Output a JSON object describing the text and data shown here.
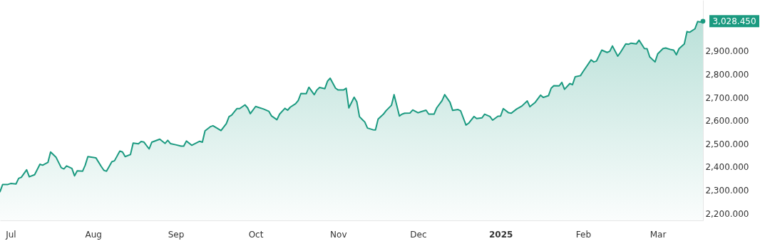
{
  "chart_data": {
    "type": "area",
    "x": [
      "2024-06-27",
      "2024-06-28",
      "2024-06-30",
      "2024-07-01",
      "2024-07-03",
      "2024-07-04",
      "2024-07-05",
      "2024-07-07",
      "2024-07-08",
      "2024-07-10",
      "2024-07-12",
      "2024-07-13",
      "2024-07-15",
      "2024-07-16",
      "2024-07-18",
      "2024-07-20",
      "2024-07-21",
      "2024-07-22",
      "2024-07-24",
      "2024-07-25",
      "2024-07-26",
      "2024-07-28",
      "2024-07-29",
      "2024-07-30",
      "2024-08-02",
      "2024-08-04",
      "2024-08-05",
      "2024-08-06",
      "2024-08-08",
      "2024-08-09",
      "2024-08-11",
      "2024-08-12",
      "2024-08-13",
      "2024-08-15",
      "2024-08-16",
      "2024-08-18",
      "2024-08-19",
      "2024-08-20",
      "2024-08-22",
      "2024-08-23",
      "2024-08-26",
      "2024-08-28",
      "2024-08-29",
      "2024-08-30",
      "2024-09-01",
      "2024-09-03",
      "2024-09-04",
      "2024-09-05",
      "2024-09-07",
      "2024-09-10",
      "2024-09-11",
      "2024-09-12",
      "2024-09-14",
      "2024-09-15",
      "2024-09-18",
      "2024-09-20",
      "2024-09-21",
      "2024-09-22",
      "2024-09-24",
      "2024-09-25",
      "2024-09-27",
      "2024-09-28",
      "2024-09-29",
      "2024-10-01",
      "2024-10-04",
      "2024-10-06",
      "2024-10-07",
      "2024-10-09",
      "2024-10-10",
      "2024-10-12",
      "2024-10-13",
      "2024-10-14",
      "2024-10-16",
      "2024-10-17",
      "2024-10-18",
      "2024-10-20",
      "2024-10-21",
      "2024-10-23",
      "2024-10-24",
      "2024-10-25",
      "2024-10-27",
      "2024-10-28",
      "2024-10-29",
      "2024-10-31",
      "2024-11-01",
      "2024-11-03",
      "2024-11-04",
      "2024-11-05",
      "2024-11-07",
      "2024-11-08",
      "2024-11-09",
      "2024-11-11",
      "2024-11-12",
      "2024-11-14",
      "2024-11-15",
      "2024-11-16",
      "2024-11-18",
      "2024-11-19",
      "2024-11-21",
      "2024-11-22",
      "2024-11-24",
      "2024-11-25",
      "2024-11-26",
      "2024-11-28",
      "2024-11-29",
      "2024-12-01",
      "2024-12-02",
      "2024-12-04",
      "2024-12-05",
      "2024-12-07",
      "2024-12-08",
      "2024-12-10",
      "2024-12-11",
      "2024-12-13",
      "2024-12-14",
      "2024-12-16",
      "2024-12-17",
      "2024-12-19",
      "2024-12-20",
      "2024-12-22",
      "2024-12-23",
      "2024-12-25",
      "2024-12-26",
      "2024-12-28",
      "2024-12-29",
      "2024-12-31",
      "2025-01-01",
      "2025-01-02",
      "2025-01-04",
      "2025-01-05",
      "2025-01-07",
      "2025-01-09",
      "2025-01-11",
      "2025-01-12",
      "2025-01-14",
      "2025-01-16",
      "2025-01-17",
      "2025-01-19",
      "2025-01-20",
      "2025-01-21",
      "2025-01-23",
      "2025-01-24",
      "2025-01-25",
      "2025-01-27",
      "2025-01-28",
      "2025-01-29",
      "2025-01-31",
      "2025-02-01",
      "2025-02-04",
      "2025-02-05",
      "2025-02-06",
      "2025-02-08",
      "2025-02-10",
      "2025-02-11",
      "2025-02-12",
      "2025-02-14",
      "2025-02-15",
      "2025-02-17",
      "2025-02-18",
      "2025-02-19",
      "2025-02-21",
      "2025-02-22",
      "2025-02-24",
      "2025-02-25",
      "2025-02-26",
      "2025-02-28",
      "2025-03-01",
      "2025-03-03",
      "2025-03-04",
      "2025-03-06",
      "2025-03-07",
      "2025-03-08",
      "2025-03-09",
      "2025-03-11",
      "2025-03-12",
      "2025-03-13",
      "2025-03-15",
      "2025-03-16",
      "2025-03-17",
      "2025-03-18"
    ],
    "series": [
      {
        "color": "#1b9a80",
        "values": [
          2294,
          2325,
          2325,
          2329,
          2327,
          2351,
          2356,
          2388,
          2358,
          2367,
          2412,
          2408,
          2420,
          2465,
          2443,
          2397,
          2392,
          2405,
          2394,
          2362,
          2384,
          2382,
          2408,
          2445,
          2440,
          2403,
          2386,
          2382,
          2423,
          2427,
          2469,
          2465,
          2445,
          2454,
          2503,
          2500,
          2510,
          2508,
          2478,
          2507,
          2520,
          2502,
          2515,
          2501,
          2496,
          2490,
          2490,
          2512,
          2494,
          2511,
          2507,
          2556,
          2574,
          2578,
          2557,
          2587,
          2617,
          2624,
          2652,
          2652,
          2668,
          2655,
          2630,
          2661,
          2650,
          2640,
          2620,
          2604,
          2628,
          2653,
          2645,
          2658,
          2673,
          2687,
          2717,
          2716,
          2744,
          2712,
          2732,
          2743,
          2738,
          2770,
          2783,
          2740,
          2732,
          2732,
          2740,
          2655,
          2701,
          2681,
          2617,
          2594,
          2568,
          2561,
          2560,
          2607,
          2628,
          2643,
          2666,
          2712,
          2620,
          2628,
          2632,
          2633,
          2646,
          2634,
          2638,
          2645,
          2628,
          2628,
          2655,
          2686,
          2712,
          2679,
          2644,
          2648,
          2642,
          2581,
          2589,
          2618,
          2609,
          2612,
          2628,
          2618,
          2602,
          2619,
          2620,
          2652,
          2634,
          2632,
          2650,
          2663,
          2685,
          2660,
          2679,
          2710,
          2700,
          2708,
          2740,
          2751,
          2750,
          2765,
          2735,
          2760,
          2755,
          2789,
          2794,
          2812,
          2862,
          2853,
          2857,
          2904,
          2894,
          2899,
          2922,
          2878,
          2894,
          2931,
          2929,
          2934,
          2931,
          2947,
          2911,
          2910,
          2875,
          2853,
          2888,
          2911,
          2913,
          2906,
          2904,
          2884,
          2910,
          2931,
          2984,
          2981,
          2996,
          3027,
          3025,
          3028.45
        ]
      }
    ],
    "xticks": [
      {
        "value": "2024-07-01",
        "label": "Jul"
      },
      {
        "value": "2024-08-01",
        "label": "Aug"
      },
      {
        "value": "2024-09-01",
        "label": "Sep"
      },
      {
        "value": "2024-10-01",
        "label": "Oct"
      },
      {
        "value": "2024-11-01",
        "label": "Nov"
      },
      {
        "value": "2024-12-01",
        "label": "Dec"
      },
      {
        "value": "2025-01-01",
        "label": "2025"
      },
      {
        "value": "2025-02-01",
        "label": "Feb"
      },
      {
        "value": "2025-03-01",
        "label": "Mar"
      }
    ],
    "xlim": [
      "2024-06-27",
      "2025-03-18"
    ],
    "ylim": [
      2170,
      3120
    ],
    "yticks": [
      {
        "value": 2200,
        "label": "2,200.000"
      },
      {
        "value": 2300,
        "label": "2,300.000"
      },
      {
        "value": 2400,
        "label": "2,400.000"
      },
      {
        "value": 2500,
        "label": "2,500.000"
      },
      {
        "value": 2600,
        "label": "2,600.000"
      },
      {
        "value": 2700,
        "label": "2,700.000"
      },
      {
        "value": 2800,
        "label": "2,800.000"
      },
      {
        "value": 2900,
        "label": "2,900.000"
      }
    ],
    "annotations": [
      {
        "text": "3,028.450",
        "x": "2025-03-18",
        "y": 3028.45
      }
    ],
    "line_style": "solid"
  }
}
